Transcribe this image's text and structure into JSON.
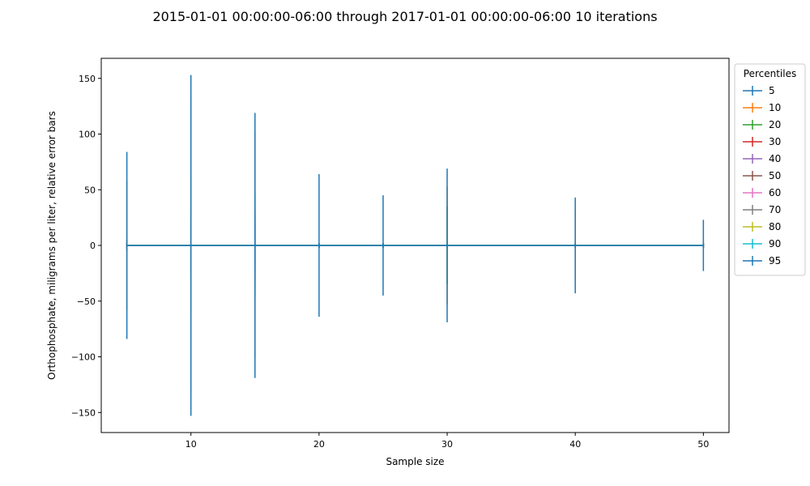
{
  "chart_data": {
    "type": "errorbar",
    "title": "2015-01-01 00:00:00-06:00 through 2017-01-01 00:00:00-06:00 10 iterations",
    "xlabel": "Sample size",
    "ylabel": "Orthophosphate, miligrams per liter, relative error bars",
    "xlim": [
      3.0,
      52.0
    ],
    "ylim": [
      -168,
      168
    ],
    "xticks": [
      10,
      20,
      30,
      40,
      50
    ],
    "yticks": [
      -150,
      -100,
      -50,
      0,
      50,
      100,
      150
    ],
    "x": [
      5,
      10,
      15,
      20,
      25,
      30,
      40,
      50
    ],
    "grid": false,
    "legend": {
      "title": "Percentiles",
      "placement": "outside-right"
    },
    "series": [
      {
        "name": "5",
        "color": "#1f77b4",
        "values": [
          0,
          0,
          0,
          0,
          0,
          0,
          0,
          0
        ],
        "errors": [
          2,
          25,
          18,
          2,
          2,
          2,
          2,
          2
        ]
      },
      {
        "name": "10",
        "color": "#ff7f0e",
        "values": [
          0,
          0,
          0,
          0,
          0,
          0,
          0,
          0
        ],
        "errors": [
          58,
          131,
          101,
          2,
          2,
          53,
          32,
          2
        ]
      },
      {
        "name": "20",
        "color": "#2ca02c",
        "values": [
          0,
          0,
          0,
          0,
          0,
          0,
          0,
          0
        ],
        "errors": [
          5,
          60,
          47,
          2,
          2,
          35,
          2,
          2
        ]
      },
      {
        "name": "30",
        "color": "#d62728",
        "values": [
          0,
          0,
          0,
          0,
          0,
          0,
          0,
          0
        ],
        "errors": [
          5,
          32,
          32,
          2,
          2,
          2,
          2,
          2
        ]
      },
      {
        "name": "40",
        "color": "#9467bd",
        "values": [
          0,
          0,
          0,
          0,
          0,
          0,
          0,
          0
        ],
        "errors": [
          2,
          27,
          25,
          2,
          2,
          2,
          2,
          2
        ]
      },
      {
        "name": "50",
        "color": "#8c564b",
        "values": [
          0,
          0,
          0,
          0,
          0,
          0,
          0,
          0
        ],
        "errors": [
          2,
          2,
          2,
          2,
          2,
          2,
          2,
          2
        ]
      },
      {
        "name": "60",
        "color": "#e377c2",
        "values": [
          0,
          0,
          0,
          0,
          0,
          0,
          0,
          0
        ],
        "errors": [
          2,
          2,
          2,
          2,
          2,
          2,
          2,
          2
        ]
      },
      {
        "name": "70",
        "color": "#7f7f7f",
        "values": [
          0,
          0,
          0,
          0,
          0,
          0,
          0,
          0
        ],
        "errors": [
          2,
          2,
          2,
          2,
          2,
          2,
          2,
          2
        ]
      },
      {
        "name": "80",
        "color": "#bcbd22",
        "values": [
          0,
          0,
          0,
          0,
          0,
          0,
          0,
          0
        ],
        "errors": [
          2,
          2,
          2,
          2,
          2,
          2,
          2,
          2
        ]
      },
      {
        "name": "90",
        "color": "#17becf",
        "values": [
          0,
          0,
          0,
          0,
          0,
          0,
          0,
          0
        ],
        "errors": [
          2,
          2,
          2,
          2,
          2,
          2,
          2,
          2
        ]
      },
      {
        "name": "95",
        "color": "#1f77b4",
        "values": [
          0,
          0,
          0,
          0,
          0,
          0,
          0,
          0
        ],
        "errors": [
          84,
          153,
          119,
          64,
          45,
          69,
          43,
          23
        ]
      }
    ]
  }
}
